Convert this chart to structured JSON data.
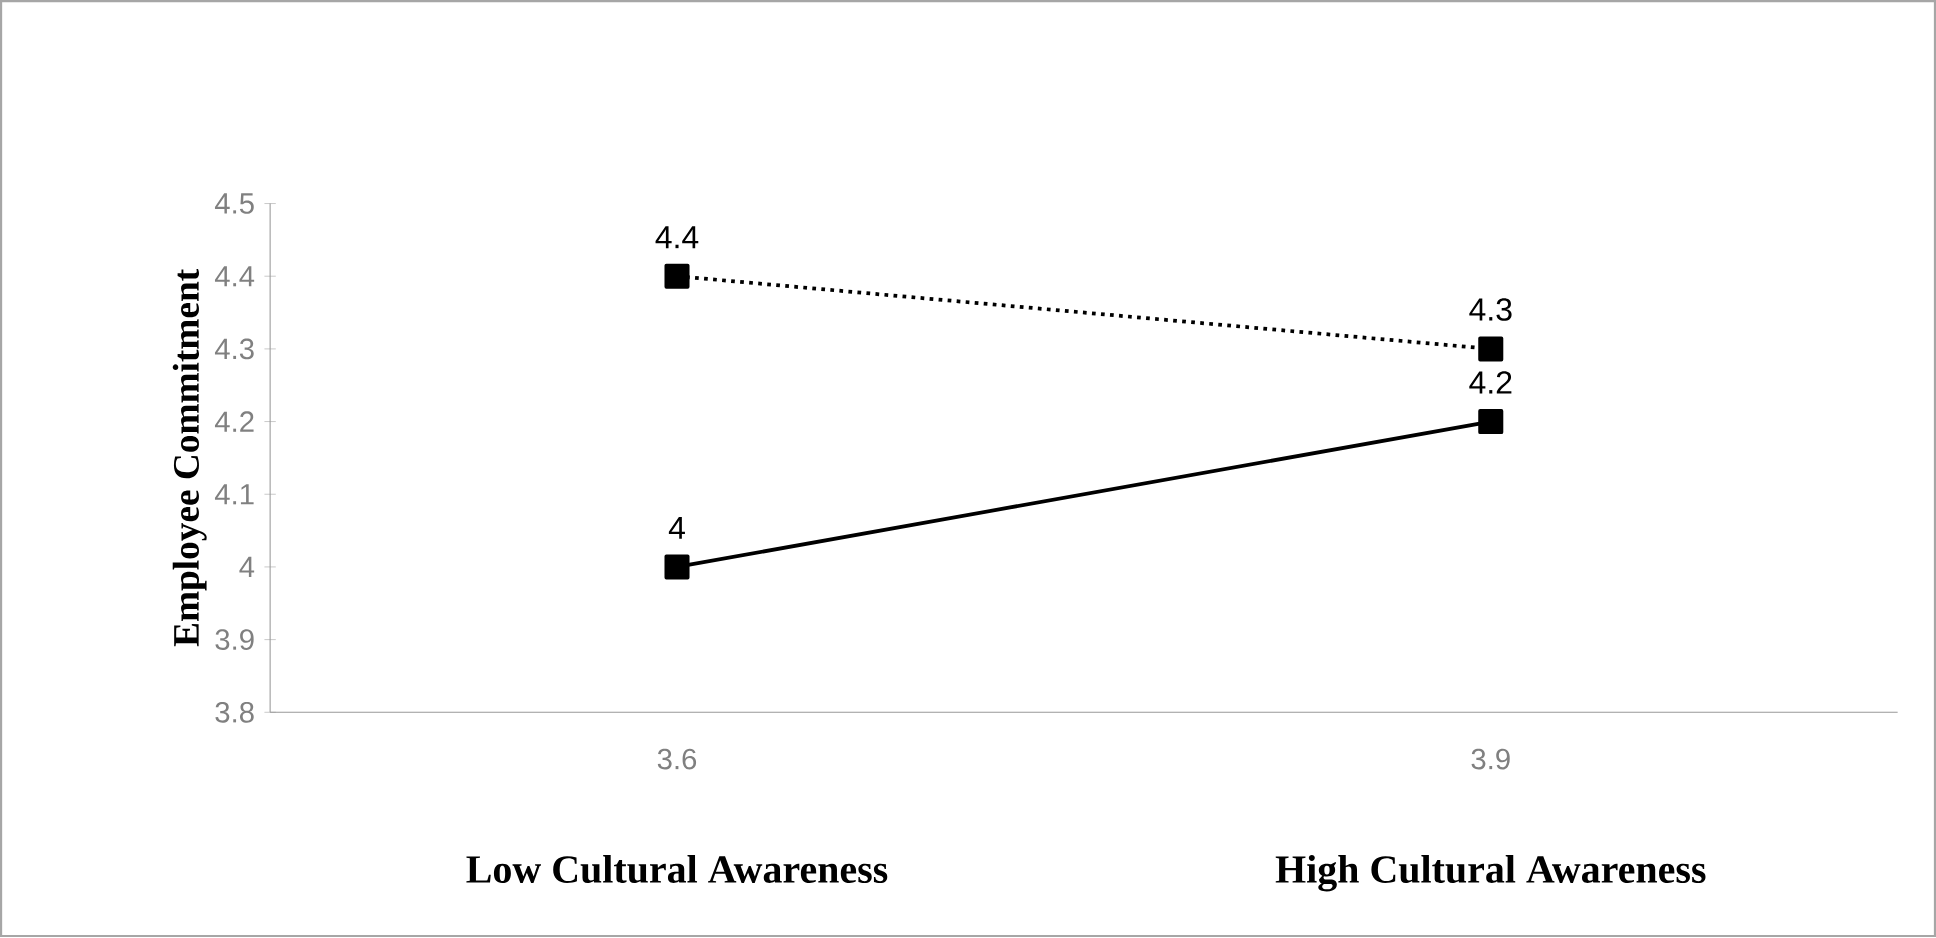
{
  "chart_data": {
    "type": "line",
    "categories": [
      "3.6",
      "3.9"
    ],
    "ylabel": "Employee Commitment",
    "series": [
      {
        "color": "#000000",
        "line_style": "dotted",
        "values": [
          4.4,
          4.3
        ],
        "value_labels": [
          "4.4",
          "4.3"
        ]
      },
      {
        "color": "#000000",
        "line_style": "solid",
        "values": [
          4.0,
          4.2
        ],
        "value_labels": [
          "4",
          "4.2"
        ]
      }
    ],
    "ylim": [
      3.8,
      4.5
    ],
    "yticks": [
      3.8,
      3.9,
      4,
      4.1,
      4.2,
      4.3,
      4.4,
      4.5
    ],
    "marker": "square",
    "grid": false,
    "annotations": [
      "Low Cultural Awareness",
      "High Cultural Awareness"
    ]
  }
}
